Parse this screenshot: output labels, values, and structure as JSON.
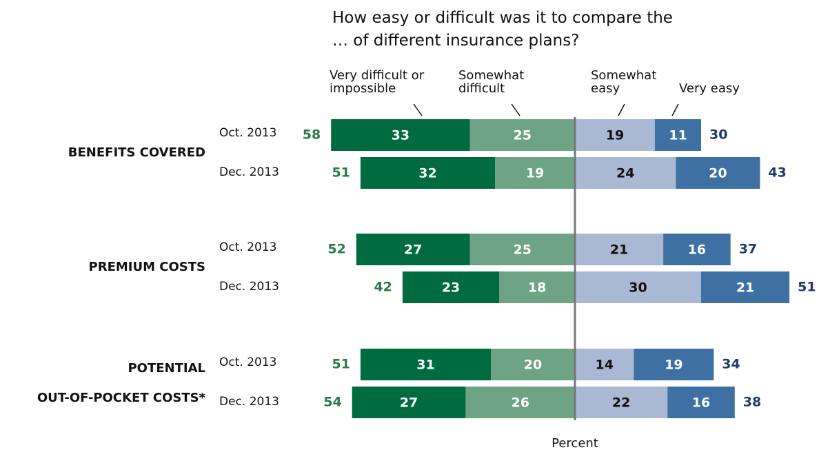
{
  "chart_data": {
    "type": "diverging_bar",
    "title": "How easy or difficult was it to compare the … of different insurance plans?",
    "x_label": "Percent",
    "groups": [
      [
        "BENEFITS COVERED"
      ],
      [
        "PREMIUM COSTS"
      ],
      [
        "POTENTIAL",
        "OUT-OF-POCKET COSTS*"
      ]
    ],
    "categories": [
      "Oct. 2013",
      "Dec. 2013",
      "Oct. 2013",
      "Dec. 2013",
      "Oct. 2013",
      "Dec. 2013"
    ],
    "series": [
      {
        "name": "Very difficult or impossible",
        "color": "#006b3f",
        "side": "left",
        "values": [
          33,
          32,
          27,
          23,
          31,
          27
        ]
      },
      {
        "name": "Somewhat difficult",
        "color": "#6fa386",
        "side": "left",
        "values": [
          25,
          19,
          25,
          18,
          20,
          26
        ]
      },
      {
        "name": "Somewhat easy",
        "color": "#a9b9d4",
        "side": "right",
        "values": [
          19,
          24,
          21,
          30,
          14,
          22
        ]
      },
      {
        "name": "Very easy",
        "color": "#3e70a4",
        "side": "right",
        "values": [
          11,
          20,
          16,
          21,
          19,
          16
        ]
      }
    ],
    "difficult_totals": [
      58,
      51,
      52,
      42,
      51,
      54
    ],
    "easy_totals": [
      30,
      43,
      37,
      51,
      34,
      38
    ]
  }
}
